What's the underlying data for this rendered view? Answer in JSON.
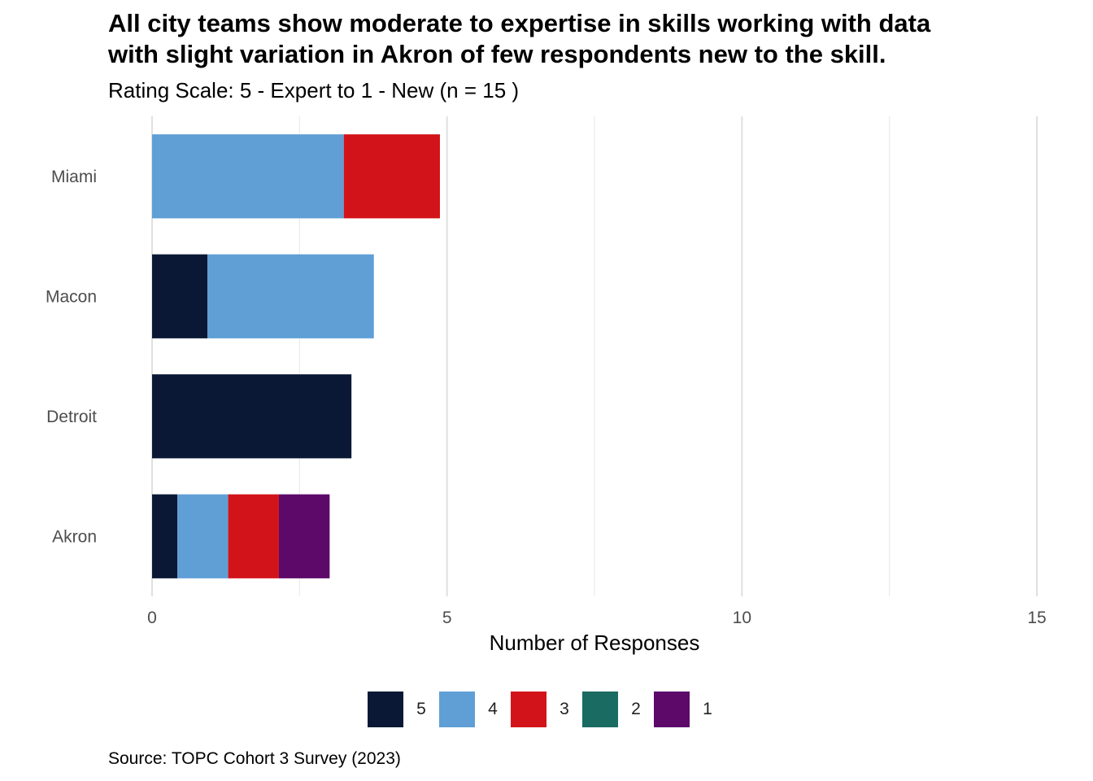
{
  "header": {
    "title_line1": "All city teams show moderate to expertise in skills working with data",
    "title_line2": "with slight variation in Akron of few respondents new to the skill.",
    "subtitle": "Rating Scale: 5 - Expert to 1 - New (n = 15 )"
  },
  "caption": "Source: TOPC Cohort 3 Survey (2023)",
  "chart_data": {
    "type": "bar",
    "orientation": "horizontal",
    "stacked": true,
    "title": "All city teams show moderate to expertise in skills working with data with slight variation in Akron of few respondents new to the skill.",
    "subtitle": "Rating Scale: 5 - Expert to 1 - New (n = 15 )",
    "xlabel": "Number of Responses",
    "ylabel": "",
    "xlim": [
      0,
      15
    ],
    "xticks": [
      0,
      5,
      10,
      15
    ],
    "grid": true,
    "legend_position": "bottom",
    "categories": [
      "Miami",
      "Macon",
      "Detroit",
      "Akron"
    ],
    "series": [
      {
        "name": "5",
        "color": "#0a1836",
        "values": [
          0,
          0.94,
          3.38,
          0.43
        ]
      },
      {
        "name": "4",
        "color": "#5f9fd6",
        "values": [
          3.25,
          2.82,
          0,
          0.86
        ]
      },
      {
        "name": "3",
        "color": "#d2141a",
        "values": [
          1.63,
          0,
          0,
          0.86
        ]
      },
      {
        "name": "2",
        "color": "#1a6b61",
        "values": [
          0,
          0,
          0,
          0
        ]
      },
      {
        "name": "1",
        "color": "#5c096a",
        "values": [
          0,
          0,
          0,
          0.86
        ]
      }
    ]
  }
}
